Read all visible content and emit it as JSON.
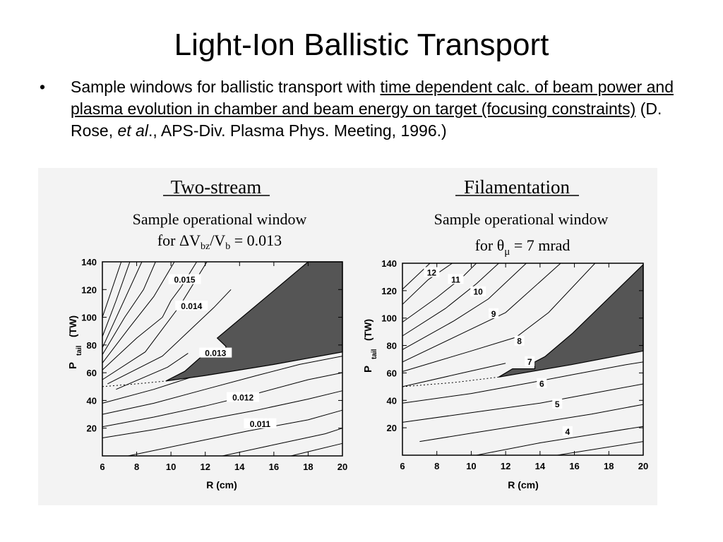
{
  "slide": {
    "title": "Light-Ion Ballistic Transport",
    "bullet": {
      "marker": "•",
      "text_before": "Sample windows for ballistic transport with ",
      "text_underlined": "time dependent calc. of beam power and plasma evolution in chamber and beam energy on target (focusing constraints)",
      "text_mid": " (D. Rose, ",
      "text_italic": "et al",
      "text_after": "., APS-Div. Plasma Phys. Meeting, 1996.)"
    }
  },
  "chart_data": [
    {
      "type": "line",
      "title": "Two-stream",
      "subtitle_line1": "Sample operational window",
      "subtitle_line2": "for ΔV",
      "subtitle_sub1": "bz",
      "subtitle_mid": "/V",
      "subtitle_sub2": "b",
      "subtitle_end": " = 0.013",
      "xlabel": "R (cm)",
      "ylabel_main": "P",
      "ylabel_sub": "tail",
      "ylabel_unit": "(TW)",
      "xlim": [
        6,
        20
      ],
      "ylim": [
        0,
        140
      ],
      "xticks": [
        6,
        8,
        10,
        12,
        14,
        16,
        18,
        20
      ],
      "yticks": [
        20,
        40,
        60,
        80,
        100,
        120,
        140
      ],
      "contour_labels": [
        {
          "text": "0.015",
          "x": 10.8,
          "y": 126
        },
        {
          "text": "0.014",
          "x": 11.2,
          "y": 107
        },
        {
          "text": "0.013",
          "x": 12.6,
          "y": 73
        },
        {
          "text": "0.012",
          "x": 14.2,
          "y": 41
        },
        {
          "text": "0.011",
          "x": 15.2,
          "y": 22
        }
      ],
      "window_polygon": {
        "x": [
          9.7,
          10.8,
          11.9,
          13.2,
          13.2,
          12.7,
          15.5,
          18.0,
          20.0,
          20.0,
          16.0,
          12.0,
          9.7
        ],
        "y": [
          54,
          61,
          73,
          73,
          79,
          85,
          114,
          140,
          140,
          75,
          66,
          58,
          54
        ]
      },
      "dashed_boundary": {
        "x": [
          6,
          8,
          9.7
        ],
        "y": [
          50,
          52,
          54
        ]
      },
      "contours": [
        {
          "x": [
            6.0,
            7.1
          ],
          "y": [
            100,
            140
          ]
        },
        {
          "x": [
            6.0,
            6.8,
            7.6
          ],
          "y": [
            86,
            112,
            140
          ]
        },
        {
          "x": [
            6.0,
            7.0,
            8.3
          ],
          "y": [
            78,
            105,
            140
          ]
        },
        {
          "x": [
            6.0,
            7.3,
            8.4,
            9.1
          ],
          "y": [
            73,
            100,
            120,
            140
          ]
        },
        {
          "x": [
            6.0,
            7.6,
            9.0,
            10.2
          ],
          "y": [
            67,
            93,
            115,
            140
          ]
        },
        {
          "x": [
            6.0,
            8.0,
            9.5,
            10.0,
            10.6,
            11.5
          ],
          "y": [
            62,
            85,
            100,
            112,
            122,
            140
          ]
        },
        {
          "x": [
            6.0,
            8.5,
            10.5,
            12.1
          ],
          "y": [
            55,
            75,
            108,
            140
          ]
        },
        {
          "x": [
            6.3,
            9.5,
            12.5,
            13.5
          ],
          "y": [
            52,
            72,
            107,
            120
          ]
        },
        {
          "x": [
            6.8,
            9.8,
            11.0
          ],
          "y": [
            48,
            64,
            74
          ]
        },
        {
          "x": [
            6.0,
            9.0,
            12.0,
            14.5
          ],
          "y": [
            38,
            48,
            60,
            66
          ]
        },
        {
          "x": [
            6.0,
            9.0,
            12.0,
            15.0,
            17.5,
            20.0
          ],
          "y": [
            30,
            38,
            48,
            58,
            66,
            72
          ]
        },
        {
          "x": [
            6.0,
            9.0,
            12.0,
            15.0,
            18.0,
            20.0
          ],
          "y": [
            21,
            28,
            36,
            45,
            55,
            60
          ]
        },
        {
          "x": [
            6.0,
            9.0,
            12.0,
            15.0,
            18.0,
            20.0
          ],
          "y": [
            13,
            19,
            26,
            33,
            41,
            47
          ]
        },
        {
          "x": [
            7.5,
            11.0,
            14.5,
            18.0,
            20.0
          ],
          "y": [
            0,
            9,
            18,
            26,
            33
          ]
        },
        {
          "x": [
            13.0,
            16.0,
            19.0,
            20.0
          ],
          "y": [
            0,
            8,
            16,
            20
          ]
        },
        {
          "x": [
            17.0,
            20.0
          ],
          "y": [
            0,
            9
          ]
        }
      ]
    },
    {
      "type": "line",
      "title": "Filamentation",
      "subtitle_line1": "Sample operational window",
      "subtitle_line2": "for θ",
      "subtitle_sub1": "μ",
      "subtitle_end": " = 7 mrad",
      "xlabel": "R (cm)",
      "ylabel_main": "P",
      "ylabel_sub": "tail",
      "ylabel_unit": "(TW)",
      "xlim": [
        6,
        20
      ],
      "ylim": [
        0,
        140
      ],
      "xticks": [
        6,
        8,
        10,
        12,
        14,
        16,
        18,
        20
      ],
      "yticks": [
        20,
        40,
        60,
        80,
        100,
        120,
        140
      ],
      "contour_labels": [
        {
          "text": "12",
          "x": 7.7,
          "y": 132
        },
        {
          "text": "11",
          "x": 9.1,
          "y": 127
        },
        {
          "text": "10",
          "x": 10.4,
          "y": 118
        },
        {
          "text": "9",
          "x": 11.3,
          "y": 102
        },
        {
          "text": "8",
          "x": 12.8,
          "y": 82
        },
        {
          "text": "7",
          "x": 13.4,
          "y": 67
        },
        {
          "text": "6",
          "x": 14.1,
          "y": 51
        },
        {
          "text": "5",
          "x": 15.0,
          "y": 36
        },
        {
          "text": "4",
          "x": 15.6,
          "y": 16
        }
      ],
      "window_polygon": {
        "x": [
          11.6,
          12.4,
          13.7,
          13.7,
          14.3,
          15.9,
          20.0,
          20.0,
          15.8,
          11.6
        ],
        "y": [
          57,
          63,
          63,
          68,
          72,
          89,
          139,
          76,
          66,
          57
        ]
      },
      "dashed_boundary": {
        "x": [
          6,
          9,
          11.6
        ],
        "y": [
          50,
          53,
          57
        ]
      },
      "contours": [
        {
          "x": [
            6.0,
            7.6
          ],
          "y": [
            121,
            140
          ]
        },
        {
          "x": [
            6.0,
            7.5,
            8.9
          ],
          "y": [
            110,
            128,
            140
          ]
        },
        {
          "x": [
            6.0,
            8.0,
            9.5,
            10.3
          ],
          "y": [
            97,
            115,
            130,
            140
          ]
        },
        {
          "x": [
            6.0,
            8.5,
            10.3,
            11.6
          ],
          "y": [
            87,
            107,
            125,
            140
          ]
        },
        {
          "x": [
            6.0,
            9.0,
            11.0,
            13.2
          ],
          "y": [
            77,
            98,
            114,
            140
          ]
        },
        {
          "x": [
            6.0,
            9.5,
            12.0,
            15.2
          ],
          "y": [
            68,
            89,
            104,
            140
          ]
        },
        {
          "x": [
            6.0,
            10.0,
            12.6,
            14.5,
            17.2
          ],
          "y": [
            61,
            76,
            86,
            104,
            140
          ]
        },
        {
          "x": [
            6.0,
            9.5,
            12.0
          ],
          "y": [
            50,
            60,
            67
          ]
        },
        {
          "x": [
            6.0,
            10.0,
            13.5,
            16.0,
            19.0,
            20.0
          ],
          "y": [
            38,
            45,
            53,
            59,
            66,
            68
          ]
        },
        {
          "x": [
            6.0,
            10.0,
            14.0,
            17.0,
            20.0
          ],
          "y": [
            24,
            31,
            38,
            45,
            52
          ]
        },
        {
          "x": [
            7.0,
            10.0,
            14.0,
            17.0,
            20.0
          ],
          "y": [
            10,
            16,
            24,
            30,
            37
          ]
        },
        {
          "x": [
            10.3,
            14.0,
            17.0,
            20.0
          ],
          "y": [
            0,
            9,
            15,
            21
          ]
        },
        {
          "x": [
            15.0,
            20.0
          ],
          "y": [
            0,
            10
          ]
        }
      ]
    }
  ]
}
